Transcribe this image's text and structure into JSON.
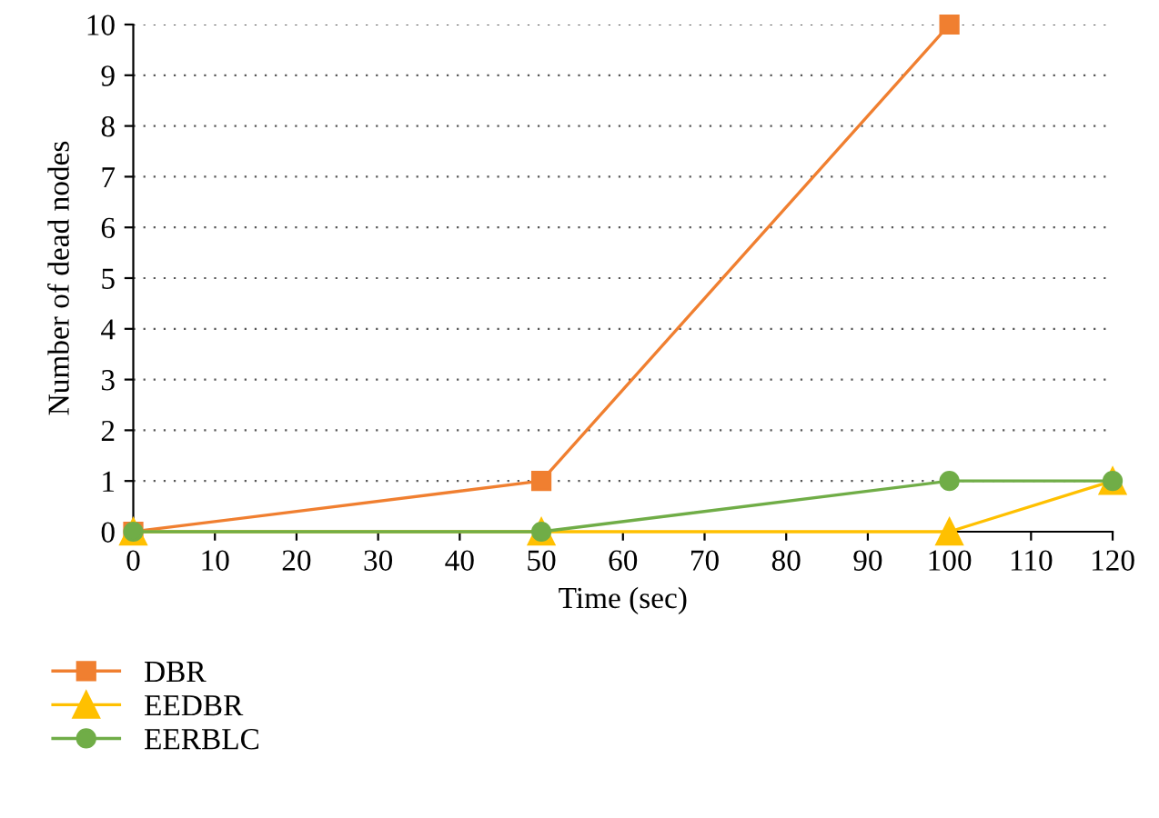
{
  "chart_data": {
    "type": "line",
    "xlabel": "Time (sec)",
    "ylabel": "Number of dead nodes",
    "xlim": [
      0,
      120
    ],
    "ylim": [
      0,
      10
    ],
    "xticks": [
      0,
      10,
      20,
      30,
      40,
      50,
      60,
      70,
      80,
      90,
      100,
      110,
      120
    ],
    "yticks": [
      0,
      1,
      2,
      3,
      4,
      5,
      6,
      7,
      8,
      9,
      10
    ],
    "grid": "y",
    "legend": "bottom",
    "line_style": "solid",
    "series": [
      {
        "name": "DBR",
        "color": "#f07f30",
        "marker": "square",
        "x": [
          0,
          50,
          100
        ],
        "values": [
          0,
          1,
          10
        ]
      },
      {
        "name": "EEDBR",
        "color": "#ffc000",
        "marker": "triangle",
        "x": [
          0,
          50,
          100,
          120
        ],
        "values": [
          0,
          0,
          0,
          1
        ]
      },
      {
        "name": "EERBLC",
        "color": "#70ad47",
        "marker": "circle",
        "x": [
          0,
          50,
          100,
          120
        ],
        "values": [
          0,
          0,
          1,
          1
        ]
      }
    ]
  }
}
